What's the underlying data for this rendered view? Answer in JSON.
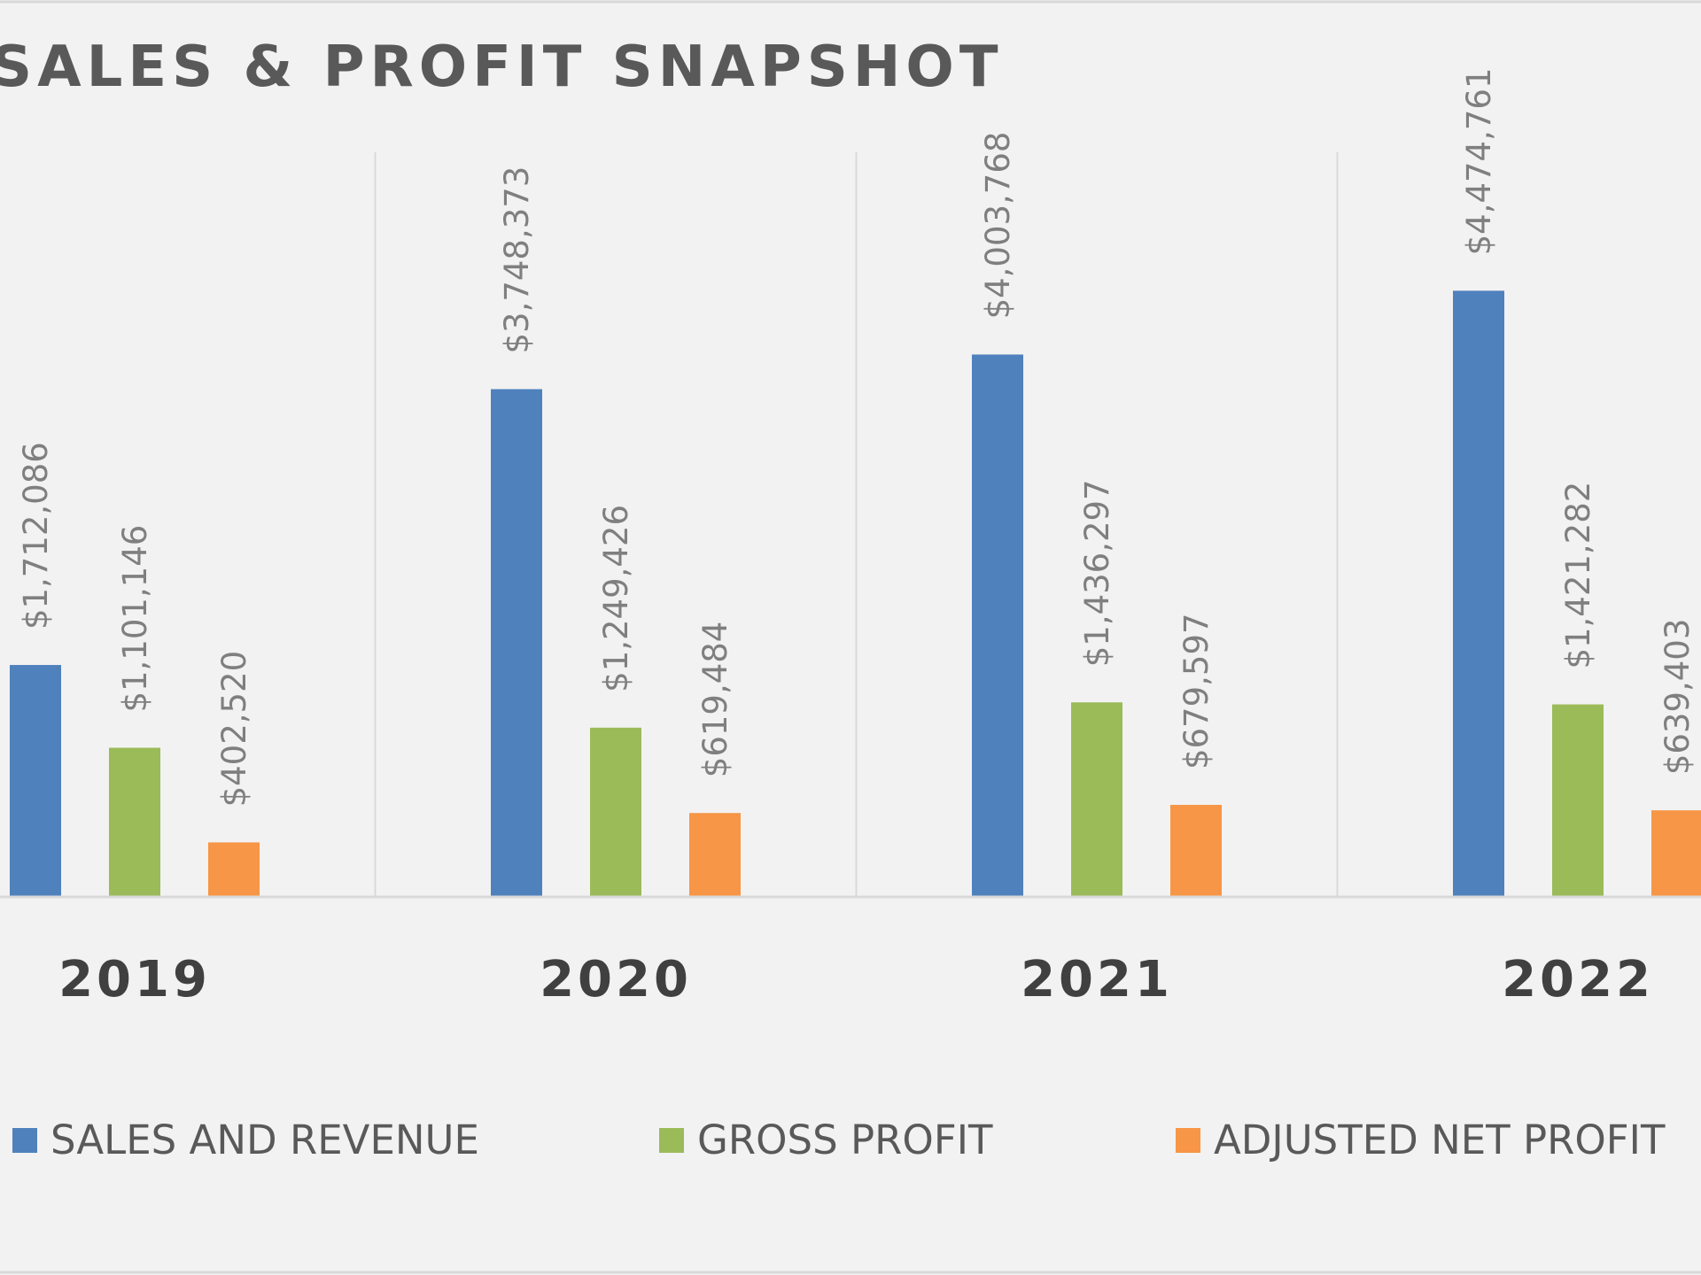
{
  "chart_data": {
    "type": "bar",
    "title": "SALES & PROFIT SNAPSHOT",
    "categories": [
      "2019",
      "2020",
      "2021",
      "2022"
    ],
    "series": [
      {
        "name": "SALES AND REVENUE",
        "color": "#4f81bd",
        "values": [
          1712086,
          3748373,
          4003768,
          4474761
        ],
        "labels": [
          "$1,712,086",
          "$3,748,373",
          "$4,003,768",
          "$4,474,761"
        ]
      },
      {
        "name": "GROSS PROFIT",
        "color": "#9bbb59",
        "values": [
          1101146,
          1249426,
          1436297,
          1421282
        ],
        "labels": [
          "$1,101,146",
          "$1,249,426",
          "$1,436,297",
          "$1,421,282"
        ]
      },
      {
        "name": "ADJUSTED NET PROFIT",
        "color": "#f79646",
        "values": [
          402520,
          619484,
          679597,
          639403
        ],
        "labels": [
          "$402,520",
          "$619,484",
          "$679,597",
          "$639,403"
        ]
      }
    ],
    "ylim": [
      0,
      5000000
    ],
    "grid": "vertical category separators",
    "legend_position": "bottom"
  }
}
